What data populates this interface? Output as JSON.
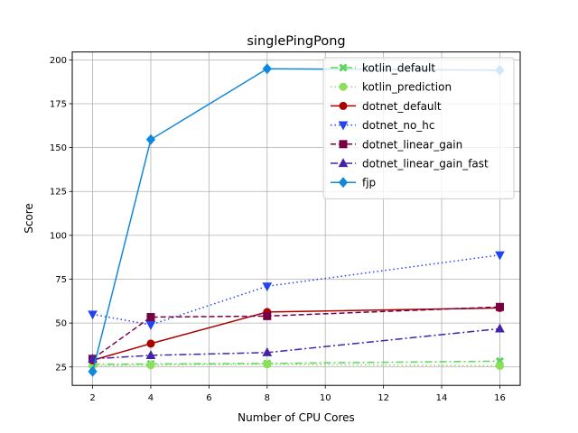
{
  "chart_data": {
    "type": "line",
    "title": "singlePingPong",
    "xlabel": "Number of CPU Cores",
    "ylabel": "Score",
    "xlim": [
      1.3,
      16.7
    ],
    "ylim": [
      14.5,
      204.5
    ],
    "xticks": [
      2,
      4,
      6,
      8,
      10,
      12,
      14,
      16
    ],
    "yticks": [
      25,
      50,
      75,
      100,
      125,
      150,
      175,
      200
    ],
    "grid": true,
    "legend_position": "upper right",
    "x": [
      2,
      4,
      8,
      16
    ],
    "series": [
      {
        "name": "kotlin_default",
        "values": [
          26.5,
          26.7,
          27.0,
          28.3
        ],
        "color": "#5cd65c",
        "dash": "8,3,2,3",
        "marker": "x"
      },
      {
        "name": "kotlin_prediction",
        "values": [
          25.6,
          26.0,
          26.5,
          25.6
        ],
        "color": "#8be05a",
        "dash": "1.5,3",
        "marker": "circle"
      },
      {
        "name": "dotnet_default",
        "values": [
          28.8,
          38.3,
          56.3,
          58.6
        ],
        "color": "#aa0000",
        "dash": "",
        "marker": "circle"
      },
      {
        "name": "dotnet_no_hc",
        "values": [
          55.0,
          49.0,
          71.0,
          88.8
        ],
        "color": "#2244ee",
        "dash": "1.5,3",
        "marker": "triangle-down"
      },
      {
        "name": "dotnet_linear_gain",
        "values": [
          29.6,
          53.4,
          54.0,
          59.2
        ],
        "color": "#770044",
        "dash": "6,3",
        "marker": "square"
      },
      {
        "name": "dotnet_linear_gain_fast",
        "values": [
          29.6,
          31.6,
          33.2,
          46.8
        ],
        "color": "#4422aa",
        "dash": "8,3,2,3",
        "marker": "triangle-up"
      },
      {
        "name": "fjp",
        "values": [
          22.4,
          154.6,
          194.9,
          194.1
        ],
        "color": "#1188dd",
        "dash": "",
        "marker": "diamond"
      }
    ]
  }
}
